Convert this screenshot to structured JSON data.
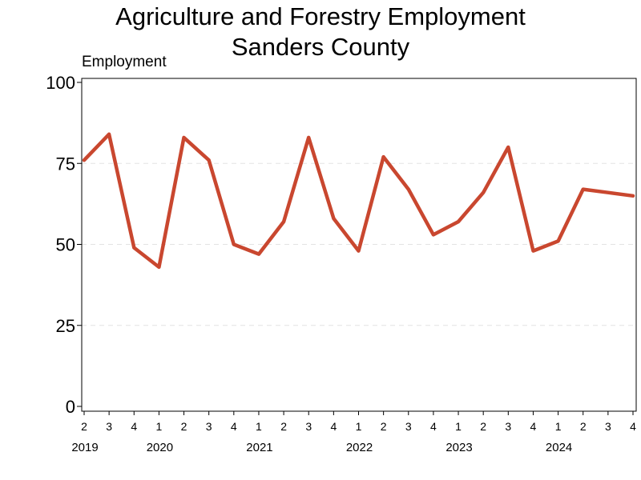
{
  "chart_data": {
    "type": "line",
    "title_lines": [
      "Agriculture and Forestry Employment",
      "Sanders County"
    ],
    "ylabel": "Employment",
    "xlabel": "",
    "ylim": [
      0,
      100
    ],
    "yticks": [
      0,
      25,
      50,
      75,
      100
    ],
    "grid": "horizontal dashed",
    "line_color": "#c9472f",
    "grid_color": "#e3e3e3",
    "x": [
      "2019 Q2",
      "2019 Q3",
      "2019 Q4",
      "2020 Q1",
      "2020 Q2",
      "2020 Q3",
      "2020 Q4",
      "2021 Q1",
      "2021 Q2",
      "2021 Q3",
      "2021 Q4",
      "2022 Q1",
      "2022 Q2",
      "2022 Q3",
      "2022 Q4",
      "2023 Q1",
      "2023 Q2",
      "2023 Q3",
      "2023 Q4",
      "2024 Q1",
      "2024 Q2",
      "2024 Q3",
      "2024 Q4"
    ],
    "quarter_labels": [
      "2",
      "3",
      "4",
      "1",
      "2",
      "3",
      "4",
      "1",
      "2",
      "3",
      "4",
      "1",
      "2",
      "3",
      "4",
      "1",
      "2",
      "3",
      "4",
      "1",
      "2",
      "3",
      "4"
    ],
    "year_labels": [
      {
        "label": "2019",
        "index": 0
      },
      {
        "label": "2020",
        "index": 3
      },
      {
        "label": "2021",
        "index": 7
      },
      {
        "label": "2022",
        "index": 11
      },
      {
        "label": "2023",
        "index": 15
      },
      {
        "label": "2024",
        "index": 19
      }
    ],
    "values": [
      76,
      84,
      49,
      43,
      83,
      76,
      50,
      47,
      57,
      83,
      58,
      48,
      77,
      67,
      53,
      57,
      66,
      80,
      48,
      51,
      67,
      66,
      65
    ]
  }
}
